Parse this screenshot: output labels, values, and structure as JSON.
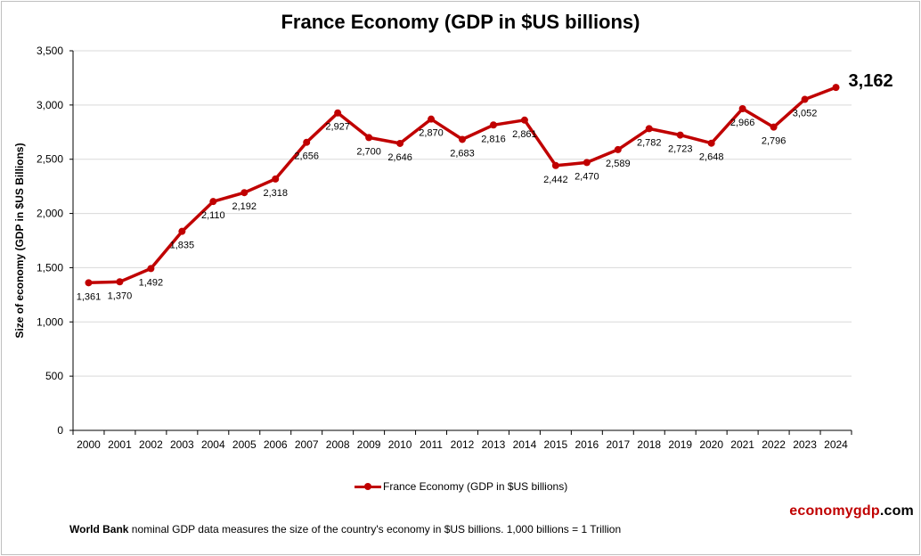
{
  "chart_data": {
    "type": "line",
    "title": "France Economy (GDP in $US billions)",
    "ylabel": "Size of economy (GDP in $US Billions)",
    "xlabel": "",
    "ylim": [
      0,
      3500
    ],
    "yticks": [
      0,
      500,
      1000,
      1500,
      2000,
      2500,
      3000,
      3500
    ],
    "ytick_labels": [
      "0",
      "500",
      "1,000",
      "1,500",
      "2,000",
      "2,500",
      "3,000",
      "3,500"
    ],
    "grid": true,
    "legend_position": "bottom",
    "categories": [
      "2000",
      "2001",
      "2002",
      "2003",
      "2004",
      "2005",
      "2006",
      "2007",
      "2008",
      "2009",
      "2010",
      "2011",
      "2012",
      "2013",
      "2014",
      "2015",
      "2016",
      "2017",
      "2018",
      "2019",
      "2020",
      "2021",
      "2022",
      "2023",
      "2024"
    ],
    "series": [
      {
        "name": "France Economy (GDP in $US billions)",
        "values": [
          1361,
          1370,
          1492,
          1835,
          2110,
          2192,
          2318,
          2656,
          2927,
          2700,
          2646,
          2870,
          2683,
          2816,
          2861,
          2442,
          2470,
          2589,
          2782,
          2723,
          2648,
          2966,
          2796,
          3052,
          3162
        ],
        "data_labels": [
          "1,361",
          "1,370",
          "1,492",
          "1,835",
          "2,110",
          "2,192",
          "2,318",
          "2,656",
          "2,927",
          "2,700",
          "2,646",
          "2,870",
          "2,683",
          "2,816",
          "2,861",
          "2,442",
          "2,470",
          "2,589",
          "2,782",
          "2,723",
          "2,648",
          "2,966",
          "2,796",
          "3,052",
          "3,162"
        ]
      }
    ]
  },
  "colors": {
    "series": "#c00000",
    "gridline": "#d9d9d9",
    "brand_primary": "#c00000",
    "brand_secondary": "#000000"
  },
  "brand": {
    "part1": "economy",
    "part2": "gdp",
    "part3": ".com"
  },
  "footer": {
    "bold": "World Bank",
    "text": " nominal GDP data  measures the size of the country's economy in $US billions. 1,000 billions = 1 Trillion"
  }
}
